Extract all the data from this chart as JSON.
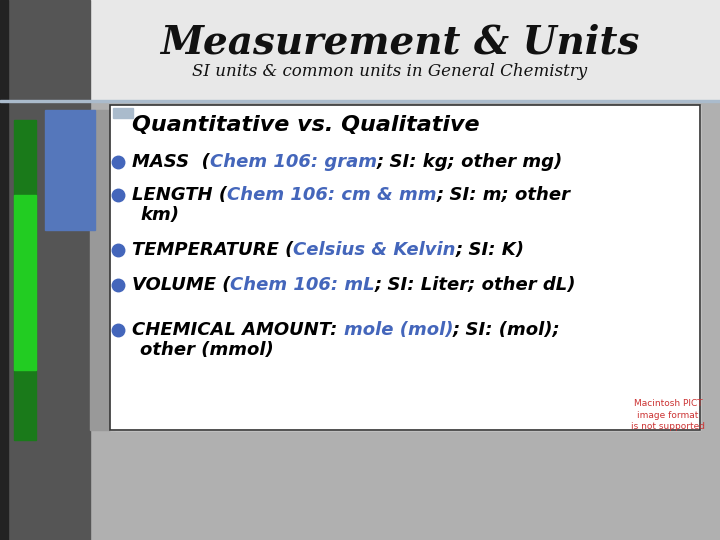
{
  "title": "Measurement & Units",
  "subtitle": "SI units & common units in General Chemistry",
  "overall_bg": "#b0b0b0",
  "title_area_bg": "#e8e8e8",
  "content_box_bg": "#ffffff",
  "content_box_border": "#333333",
  "left_dark_bg": "#555555",
  "left_green_dark": "#1a7a1a",
  "left_green_bright": "#22cc22",
  "left_blue": "#5577bb",
  "gray_strip": "#999999",
  "title_color": "#111111",
  "subtitle_color": "#111111",
  "bullet_color": "#4466bb",
  "black_text": "#000000",
  "blue_text": "#4466bb",
  "pict_color": "#cc3333",
  "pict_text": "Macintosh PICT\nimage format\nis not supported"
}
